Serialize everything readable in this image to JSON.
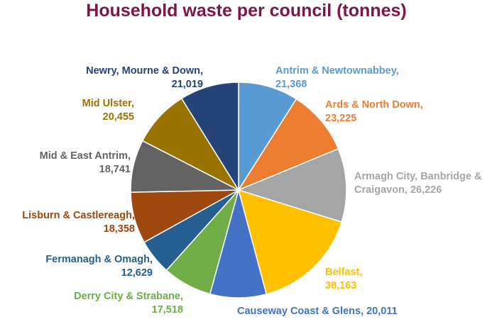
{
  "chart_data": {
    "type": "pie",
    "title": "Household waste per council (tonnes)",
    "slices": [
      {
        "label": "Antrim & Newtownabbey",
        "value_label": "21,368",
        "value": 21368,
        "color": "#5B9BD5"
      },
      {
        "label": "Ards & North Down",
        "value_label": "23,225",
        "value": 23225,
        "color": "#ED7D31"
      },
      {
        "label": "Armagh City, Banbridge & Craigavon",
        "value_label": "26,226",
        "value": 26226,
        "color": "#A5A5A5"
      },
      {
        "label": "Belfast",
        "value_label": "38,163",
        "value": 38163,
        "color": "#FFC000"
      },
      {
        "label": "Causeway Coast & Glens",
        "value_label": "20,011",
        "value": 20011,
        "color": "#4472C4"
      },
      {
        "label": "Derry City & Strabane",
        "value_label": "17,518",
        "value": 17518,
        "color": "#70AD47"
      },
      {
        "label": "Fermanagh & Omagh",
        "value_label": "12,629",
        "value": 12629,
        "color": "#255E91"
      },
      {
        "label": "Lisburn & Castlereagh",
        "value_label": "18,358",
        "value": 18358,
        "color": "#9E480E"
      },
      {
        "label": "Mid & East Antrim",
        "value_label": "18,741",
        "value": 18741,
        "color": "#636363"
      },
      {
        "label": "Mid Ulster",
        "value_label": "20,455",
        "value": 20455,
        "color": "#997300"
      },
      {
        "label": "Newry, Mourne & Down",
        "value_label": "21,019",
        "value": 21019,
        "color": "#264478"
      }
    ]
  },
  "colors": {
    "title": "#7B1747"
  }
}
